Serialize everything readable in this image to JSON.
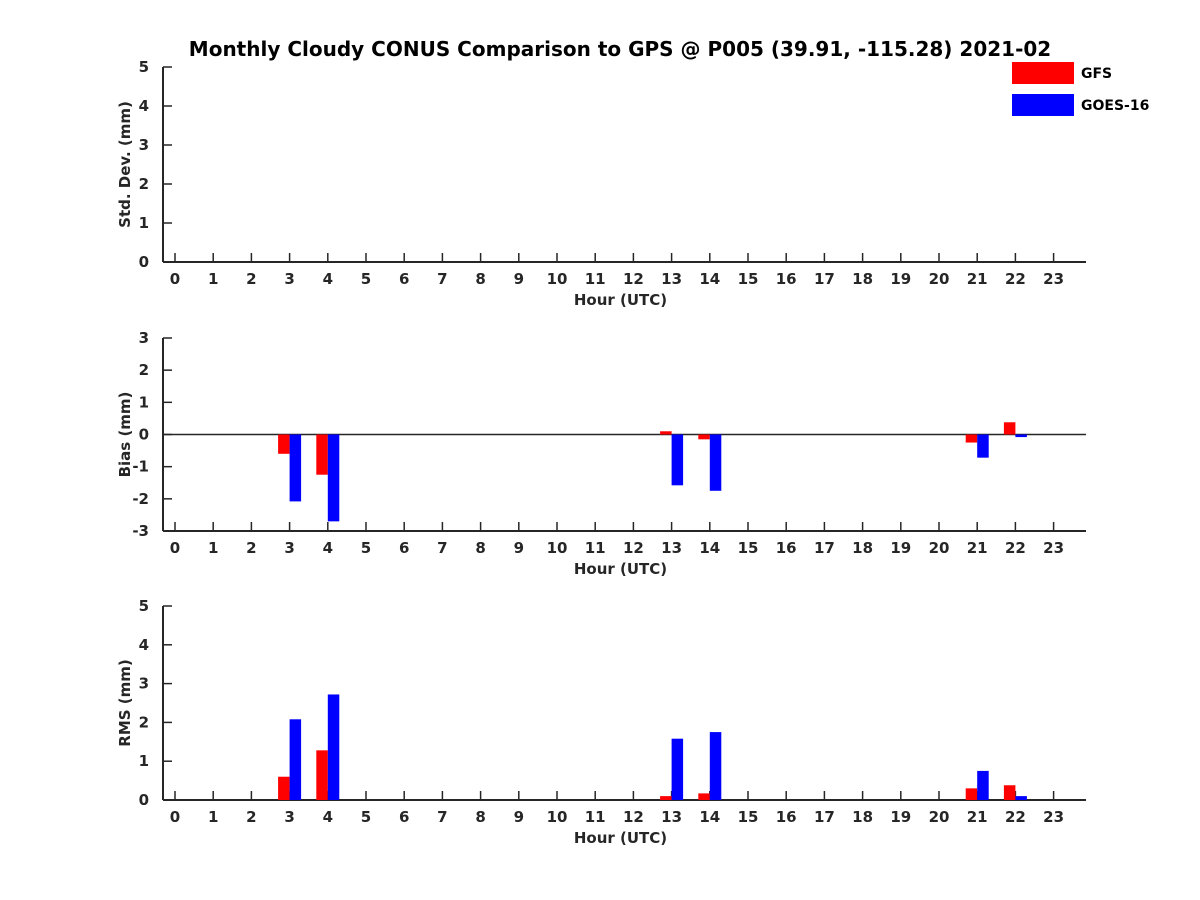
{
  "chart_data": {
    "type": "bar",
    "title": "Monthly Cloudy CONUS Comparison to GPS @ P005 (39.91, -115.28) 2021-02",
    "legend": {
      "placement": "top-right",
      "entries": [
        {
          "name": "GFS",
          "color": "#ff0000"
        },
        {
          "name": "GOES-16",
          "color": "#0000ff"
        }
      ]
    },
    "x": [
      0,
      1,
      2,
      3,
      4,
      5,
      6,
      7,
      8,
      9,
      10,
      11,
      12,
      13,
      14,
      15,
      16,
      17,
      18,
      19,
      20,
      21,
      22,
      23
    ],
    "xlabel": "Hour (UTC)",
    "panels": [
      {
        "ylabel": "Std. Dev. (mm)",
        "ylim": [
          0,
          5
        ],
        "yticks": [
          0,
          1,
          2,
          3,
          4,
          5
        ],
        "zero_line": false,
        "series": [
          {
            "name": "GFS",
            "values": [
              0,
              0,
              0,
              0,
              0,
              0,
              0,
              0,
              0,
              0,
              0,
              0,
              0,
              0,
              0,
              0,
              0,
              0,
              0,
              0,
              0,
              0,
              0,
              0
            ]
          },
          {
            "name": "GOES-16",
            "values": [
              0,
              0,
              0,
              0,
              0,
              0,
              0,
              0,
              0,
              0,
              0,
              0,
              0,
              0,
              0,
              0,
              0,
              0,
              0,
              0,
              0,
              0,
              0,
              0
            ]
          }
        ]
      },
      {
        "ylabel": "Bias (mm)",
        "ylim": [
          -3,
          3
        ],
        "yticks": [
          -3,
          -2,
          -1,
          0,
          1,
          2,
          3
        ],
        "zero_line": true,
        "series": [
          {
            "name": "GFS",
            "values": [
              0,
              0,
              0,
              -0.6,
              -1.25,
              0,
              0,
              0,
              0,
              0,
              0,
              0,
              0,
              0.1,
              -0.15,
              0,
              0,
              0,
              0,
              0,
              0,
              -0.25,
              0.38,
              0
            ]
          },
          {
            "name": "GOES-16",
            "values": [
              0,
              0,
              0,
              -2.08,
              -2.7,
              0,
              0,
              0,
              0,
              0,
              0,
              0,
              0,
              -1.58,
              -1.75,
              0,
              0,
              0,
              0,
              0,
              0,
              -0.72,
              -0.08,
              0
            ]
          }
        ]
      },
      {
        "ylabel": "RMS (mm)",
        "ylim": [
          0,
          5
        ],
        "yticks": [
          0,
          1,
          2,
          3,
          4,
          5
        ],
        "zero_line": false,
        "series": [
          {
            "name": "GFS",
            "values": [
              0,
              0,
              0,
              0.6,
              1.28,
              0,
              0,
              0,
              0,
              0,
              0,
              0,
              0,
              0.1,
              0.17,
              0,
              0,
              0,
              0,
              0,
              0,
              0.3,
              0.38,
              0
            ]
          },
          {
            "name": "GOES-16",
            "values": [
              0,
              0,
              0,
              2.08,
              2.72,
              0,
              0,
              0,
              0,
              0,
              0,
              0,
              0,
              1.58,
              1.75,
              0,
              0,
              0,
              0,
              0,
              0,
              0.75,
              0.1,
              0
            ]
          }
        ]
      }
    ]
  }
}
